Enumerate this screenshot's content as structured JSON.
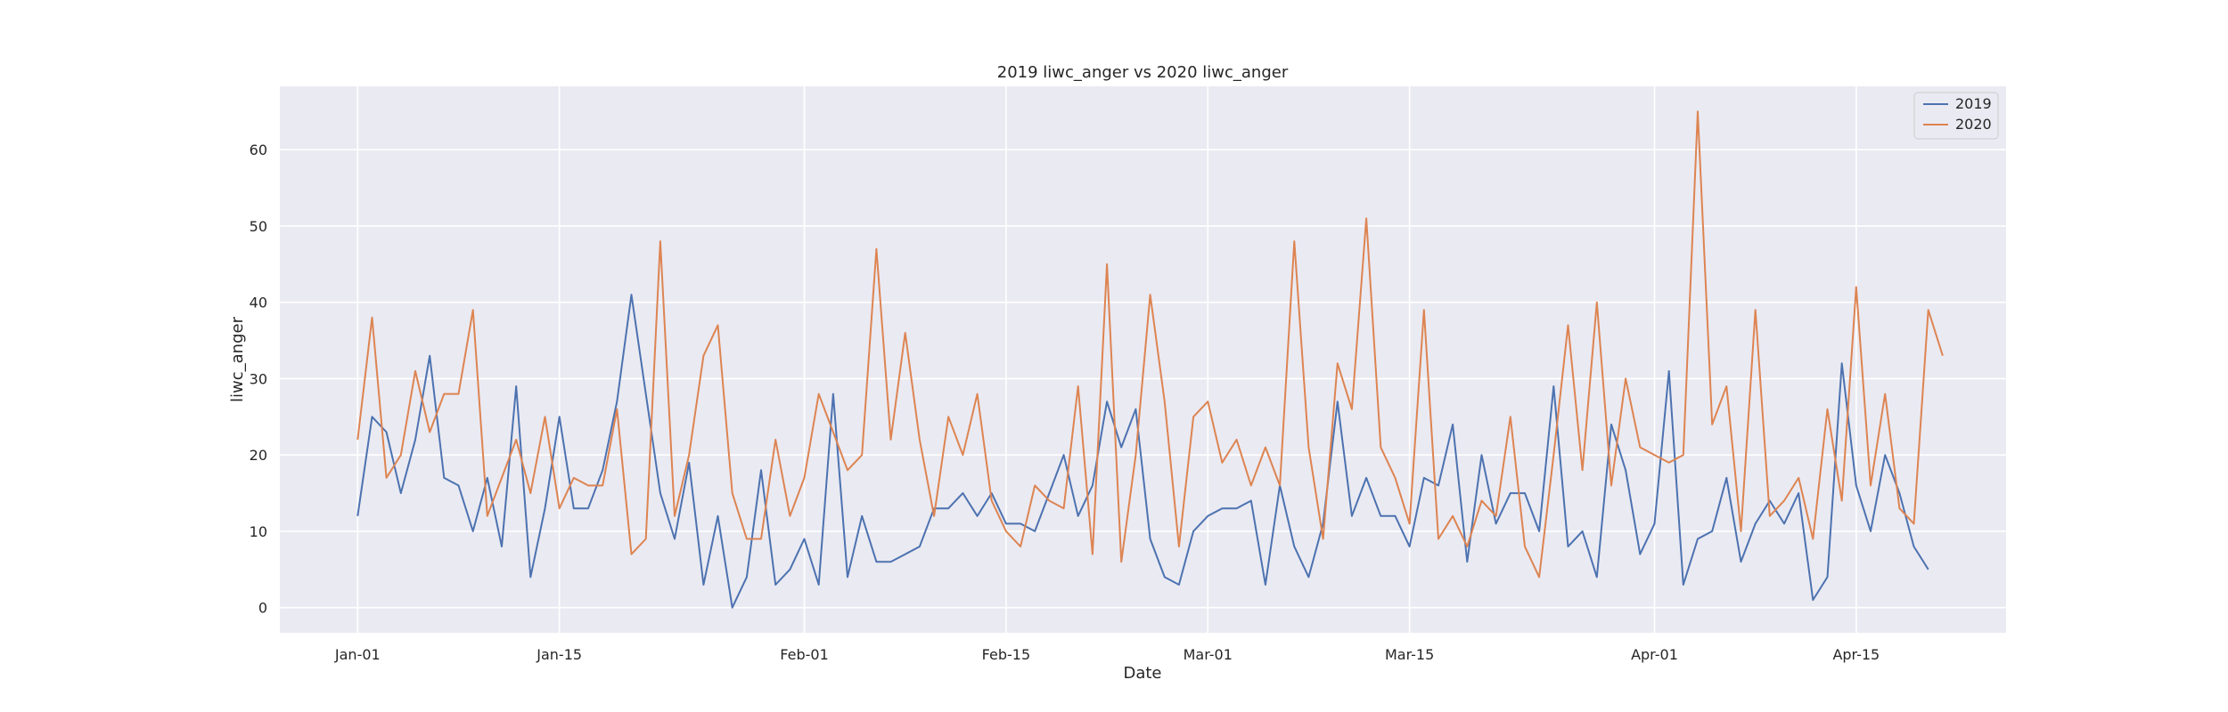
{
  "chart_data": {
    "type": "line",
    "title": "2019 liwc_anger vs 2020 liwc_anger",
    "xlabel": "Date",
    "ylabel": "liwc_anger",
    "x_start": "Jan-01",
    "x_ticks": [
      {
        "label": "Jan-01",
        "day": 0
      },
      {
        "label": "Jan-15",
        "day": 14
      },
      {
        "label": "Feb-01",
        "day": 31
      },
      {
        "label": "Feb-15",
        "day": 45
      },
      {
        "label": "Mar-01",
        "day": 59
      },
      {
        "label": "Mar-15",
        "day": 73
      },
      {
        "label": "Apr-01",
        "day": 90
      },
      {
        "label": "Apr-15",
        "day": 104
      }
    ],
    "xlim": [
      -5.4,
      114.4
    ],
    "ylim": [
      -3.3,
      68.3
    ],
    "y_ticks": [
      0,
      10,
      20,
      30,
      40,
      50,
      60
    ],
    "grid": true,
    "legend_position": "top-right",
    "series": [
      {
        "name": "2019",
        "color": "#4c72b0",
        "values": [
          12,
          25,
          23,
          15,
          22,
          33,
          17,
          16,
          10,
          17,
          8,
          29,
          4,
          13,
          25,
          13,
          13,
          18,
          27,
          41,
          28,
          15,
          9,
          19,
          3,
          12,
          0,
          4,
          18,
          3,
          5,
          9,
          3,
          28,
          4,
          12,
          6,
          6,
          7,
          8,
          13,
          13,
          15,
          12,
          15,
          11,
          11,
          10,
          15,
          20,
          12,
          16,
          27,
          21,
          26,
          9,
          4,
          3,
          10,
          12,
          13,
          13,
          14,
          3,
          16,
          8,
          4,
          11,
          27,
          12,
          17,
          12,
          12,
          8,
          17,
          16,
          24,
          6,
          20,
          11,
          15,
          15,
          10,
          29,
          8,
          10,
          4,
          24,
          18,
          7,
          11,
          31,
          3,
          9,
          10,
          17,
          6,
          11,
          14,
          11,
          15,
          1,
          4,
          32,
          16,
          10,
          20,
          15,
          8,
          5
        ]
      },
      {
        "name": "2020",
        "color": "#dd8452",
        "values": [
          22,
          38,
          17,
          20,
          31,
          23,
          28,
          28,
          39,
          12,
          17,
          22,
          15,
          25,
          13,
          17,
          16,
          16,
          26,
          7,
          9,
          48,
          12,
          20,
          33,
          37,
          15,
          9,
          9,
          22,
          12,
          17,
          28,
          23,
          18,
          20,
          47,
          22,
          36,
          22,
          12,
          25,
          20,
          28,
          14,
          10,
          8,
          16,
          14,
          13,
          29,
          7,
          45,
          6,
          20,
          41,
          27,
          8,
          25,
          27,
          19,
          22,
          16,
          21,
          16,
          48,
          21,
          9,
          32,
          26,
          51,
          21,
          17,
          11,
          39,
          9,
          12,
          8,
          14,
          12,
          25,
          8,
          4,
          20,
          37,
          18,
          40,
          16,
          30,
          21,
          20,
          19,
          20,
          65,
          24,
          29,
          10,
          39,
          12,
          14,
          17,
          9,
          26,
          14,
          42,
          16,
          28,
          13,
          11,
          39,
          33
        ]
      }
    ]
  }
}
